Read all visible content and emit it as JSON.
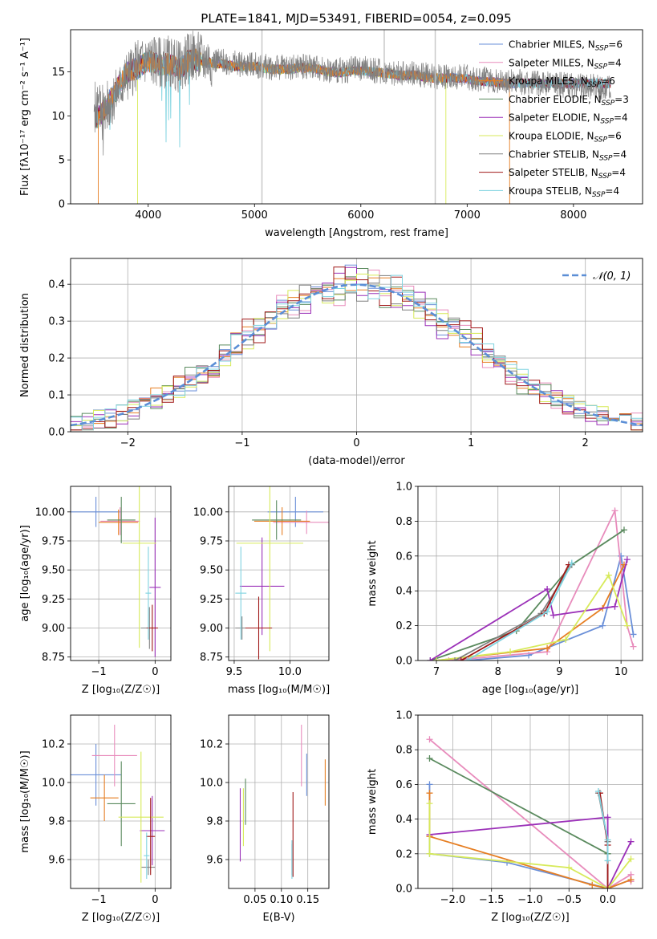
{
  "figure": {
    "title": "PLATE=1841, MJD=53491, FIBERID=0054, z=0.095"
  },
  "colors": {
    "series": [
      "#6a8fd8",
      "#e88cbc",
      "#e67e22",
      "#5a8a5e",
      "#9b30b8",
      "#d7ea5a",
      "#808080",
      "#a01818",
      "#7fd3e0"
    ],
    "normal_curve": "#5b8ed6",
    "grid": "#b0b0b0"
  },
  "chart_data": [
    {
      "id": "spectrum",
      "type": "line",
      "xlabel": "wavelength [Angstrom, rest frame]",
      "ylabel": "Flux [fλ10⁻¹⁷ erg cm⁻² s⁻¹ A⁻¹]",
      "xlim": [
        3270,
        8650
      ],
      "ylim": [
        0,
        19.8
      ],
      "xticks": [
        4000,
        5000,
        6000,
        7000,
        8000
      ],
      "yticks": [
        0,
        5,
        10,
        15
      ],
      "grid": false,
      "legend_position": "top-right",
      "legend": [
        {
          "label": "Chabrier MILES, N",
          "sub": "SSP",
          "value": "=6"
        },
        {
          "label": "Salpeter MILES, N",
          "sub": "SSP",
          "value": "=4"
        },
        {
          "label": "Kroupa MILES, N",
          "sub": "SSP",
          "value": "=6"
        },
        {
          "label": "Chabrier ELODIE, N",
          "sub": "SSP",
          "value": "=3"
        },
        {
          "label": "Salpeter ELODIE, N",
          "sub": "SSP",
          "value": "=4"
        },
        {
          "label": "Kroupa ELODIE, N",
          "sub": "SSP",
          "value": "=6"
        },
        {
          "label": "Chabrier STELIB, N",
          "sub": "SSP",
          "value": "=4"
        },
        {
          "label": "Salpeter STELIB, N",
          "sub": "SSP",
          "value": "=4"
        },
        {
          "label": "Kroupa STELIB, N",
          "sub": "SSP",
          "value": "=4"
        }
      ],
      "data_spectrum": {
        "x": [
          3500,
          3600,
          3700,
          3800,
          3900,
          4000,
          4100,
          4200,
          4300,
          4400,
          4500,
          4600,
          4700,
          4800,
          4900,
          5000,
          5100,
          5200,
          5300,
          5400,
          5500,
          5600,
          5700,
          5800,
          5900,
          6000,
          6100,
          6200,
          6300,
          6400,
          6500,
          6600,
          6700,
          6800,
          6900,
          7000,
          7100,
          7200,
          7300,
          7400,
          7500,
          7600,
          7700,
          7800,
          7900,
          8000,
          8100,
          8200,
          8300
        ],
        "y": [
          11,
          10.8,
          12.5,
          14.5,
          15.8,
          16.5,
          16,
          16.2,
          15.5,
          16.8,
          16.5,
          16.3,
          16.2,
          16,
          15.8,
          15.8,
          15.6,
          15.5,
          15.5,
          15.6,
          15.7,
          15.5,
          15.2,
          15.1,
          15.3,
          15.4,
          15.2,
          15,
          14.9,
          14.8,
          14.9,
          14.6,
          14.5,
          14.5,
          14.5,
          14.4,
          14.2,
          14.1,
          14,
          13.9,
          13.8,
          13.7,
          13.7,
          13.6,
          13.5,
          13.5,
          13.4,
          13.3,
          13.2
        ]
      },
      "model": {
        "x": [
          3450,
          3530,
          3600,
          3700,
          3800,
          3900,
          4000,
          4100,
          4200,
          4300,
          4400,
          4500,
          4600,
          4700,
          4800,
          4900,
          5000,
          5100,
          5200,
          5300,
          5400,
          5500,
          5600,
          5700,
          5800,
          5900,
          6000,
          6100,
          6200,
          6300,
          6400,
          6500,
          6600,
          6700,
          6800,
          6900,
          7000,
          7100,
          7200,
          7300,
          7400
        ],
        "y": [
          10.2,
          9.8,
          11,
          13,
          15,
          15.4,
          16.3,
          15.8,
          15.9,
          15.3,
          16.5,
          16.2,
          16,
          15.9,
          15.7,
          15.6,
          15.6,
          15.4,
          15.3,
          15.3,
          15.4,
          15.5,
          15.3,
          15,
          14.9,
          15.1,
          15.2,
          15,
          14.9,
          14.7,
          14.6,
          14.7,
          14.4,
          14.3,
          14.3,
          14.3,
          14.2,
          14,
          13.9,
          13.8,
          13.7
        ]
      },
      "model_range": {
        "Kroupa MILES": [
          3530,
          7400
        ],
        "Kroupa ELODIE": [
          3900,
          6800
        ]
      }
    },
    {
      "id": "residuals",
      "type": "line",
      "xlabel": "(data-model)/error",
      "ylabel": "Normed distribution",
      "xlim": [
        -2.5,
        2.5
      ],
      "ylim": [
        0,
        0.47
      ],
      "xticks": [
        -2,
        -1,
        0,
        1,
        2
      ],
      "yticks": [
        0.0,
        0.1,
        0.2,
        0.3,
        0.4
      ],
      "grid": true,
      "legend_position": "top-right",
      "legend_label": "𝒩(0, 1)",
      "bin_width": 0.1,
      "normal": {
        "mean": 0,
        "sigma": 1
      }
    },
    {
      "id": "age_vs_Z",
      "type": "scatter",
      "xlabel": "Z [log₁₀(Z/Z☉)]",
      "ylabel": "age  [log₁₀(age/yr)]",
      "xlim": [
        -1.5,
        0.28
      ],
      "ylim": [
        8.72,
        10.22
      ],
      "xticks": [
        -1,
        0
      ],
      "yticks": [
        8.75,
        9.0,
        9.25,
        9.5,
        9.75,
        10.0
      ],
      "grid": true,
      "points": [
        {
          "x": -1.05,
          "xerr": 0.45,
          "y": 10.0,
          "yerr": 0.13
        },
        {
          "x": -0.62,
          "xerr": 0.35,
          "y": 9.92,
          "yerr": 0.12
        },
        {
          "x": -0.65,
          "xerr": 0.35,
          "y": 9.91,
          "yerr": 0.11
        },
        {
          "x": -0.6,
          "xerr": 0.25,
          "y": 9.93,
          "yerr": 0.2
        },
        {
          "x": 0.0,
          "xerr": 0.1,
          "y": 9.35,
          "yerr": 0.6
        },
        {
          "x": -0.28,
          "xerr": 0.3,
          "y": 9.73,
          "yerr": 0.9
        },
        {
          "x": -0.1,
          "xerr": 0.15,
          "y": 9.0,
          "yerr": 0.18
        },
        {
          "x": -0.05,
          "xerr": 0.1,
          "y": 9.0,
          "yerr": 0.2
        },
        {
          "x": -0.12,
          "xerr": 0.05,
          "y": 9.3,
          "yerr": 0.4
        }
      ]
    },
    {
      "id": "age_vs_mass",
      "type": "scatter",
      "xlabel": "mass [log₁₀(M/M☉)]",
      "ylabel": "",
      "xlim": [
        9.45,
        10.35
      ],
      "ylim": [
        8.72,
        10.22
      ],
      "xticks": [
        9.5,
        10.0
      ],
      "yticks": [
        8.75,
        9.0,
        9.25,
        9.5,
        9.75,
        10.0
      ],
      "grid": true,
      "points": [
        {
          "x": 10.05,
          "xerr": 0.25,
          "y": 10.0,
          "yerr": 0.13
        },
        {
          "x": 10.15,
          "xerr": 0.3,
          "y": 9.91,
          "yerr": 0.1
        },
        {
          "x": 9.93,
          "xerr": 0.25,
          "y": 9.92,
          "yerr": 0.12
        },
        {
          "x": 9.88,
          "xerr": 0.22,
          "y": 9.93,
          "yerr": 0.17
        },
        {
          "x": 9.75,
          "xerr": 0.2,
          "y": 9.36,
          "yerr": 0.42
        },
        {
          "x": 9.82,
          "xerr": 0.3,
          "y": 9.73,
          "yerr": 0.93
        },
        {
          "x": 9.57,
          "xerr": 0.06,
          "y": 9.0,
          "yerr": 0.1
        },
        {
          "x": 9.72,
          "xerr": 0.12,
          "y": 9.0,
          "yerr": 0.27
        },
        {
          "x": 9.56,
          "xerr": 0.05,
          "y": 9.3,
          "yerr": 0.4
        }
      ]
    },
    {
      "id": "weight_vs_age",
      "type": "line",
      "xlabel": "age  [log₁₀(age/yr)]",
      "ylabel": "mass weight",
      "xlim": [
        6.7,
        10.35
      ],
      "ylim": [
        0,
        1.0
      ],
      "xticks": [
        7,
        8,
        9,
        10
      ],
      "yticks": [
        0.0,
        0.2,
        0.4,
        0.6,
        0.8,
        1.0
      ],
      "grid": true,
      "series": [
        {
          "x": [
            7.5,
            8.5,
            9.7,
            10.0,
            10.2
          ],
          "y": [
            0.0,
            0.03,
            0.2,
            0.6,
            0.15
          ]
        },
        {
          "x": [
            7.2,
            8.8,
            9.9,
            10.1,
            10.2
          ],
          "y": [
            0.0,
            0.05,
            0.86,
            0.2,
            0.08
          ]
        },
        {
          "x": [
            7.0,
            8.8,
            9.7,
            10.05
          ],
          "y": [
            0.0,
            0.07,
            0.3,
            0.55
          ]
        },
        {
          "x": [
            6.9,
            8.3,
            9.2,
            10.05
          ],
          "y": [
            0.0,
            0.17,
            0.55,
            0.75
          ]
        },
        {
          "x": [
            6.9,
            8.8,
            8.9,
            9.9,
            10.1
          ],
          "y": [
            0.0,
            0.41,
            0.26,
            0.31,
            0.58
          ]
        },
        {
          "x": [
            7.0,
            8.2,
            9.1,
            9.8,
            10.1
          ],
          "y": [
            0.0,
            0.05,
            0.12,
            0.49,
            0.2
          ]
        },
        {
          "x": [
            7.3,
            8.7,
            9.2
          ],
          "y": [
            0.0,
            0.27,
            0.55
          ]
        },
        {
          "x": [
            7.4,
            8.75,
            9.15
          ],
          "y": [
            0.0,
            0.27,
            0.55
          ]
        },
        {
          "x": [
            7.5,
            8.8,
            9.2
          ],
          "y": [
            0.0,
            0.28,
            0.56
          ]
        }
      ]
    },
    {
      "id": "mass_vs_Z",
      "type": "scatter",
      "xlabel": "Z [log₁₀(Z/Z☉)]",
      "ylabel": "mass [log₁₀(M/M☉)]",
      "xlim": [
        -1.5,
        0.28
      ],
      "ylim": [
        9.45,
        10.35
      ],
      "xticks": [
        -1,
        0
      ],
      "yticks": [
        9.6,
        9.8,
        10.0,
        10.2
      ],
      "grid": true,
      "points": [
        {
          "x": -1.05,
          "xerr": 0.45,
          "y": 10.04,
          "yerr": 0.16
        },
        {
          "x": -0.72,
          "xerr": 0.4,
          "y": 10.14,
          "yerr": 0.16
        },
        {
          "x": -0.9,
          "xerr": 0.25,
          "y": 9.92,
          "yerr": 0.12
        },
        {
          "x": -0.6,
          "xerr": 0.25,
          "y": 9.89,
          "yerr": 0.22
        },
        {
          "x": -0.05,
          "xerr": 0.22,
          "y": 9.75,
          "yerr": 0.18
        },
        {
          "x": -0.25,
          "xerr": 0.4,
          "y": 9.82,
          "yerr": 0.34
        },
        {
          "x": -0.12,
          "xerr": 0.12,
          "y": 9.56,
          "yerr": 0.04
        },
        {
          "x": -0.08,
          "xerr": 0.08,
          "y": 9.72,
          "yerr": 0.2
        },
        {
          "x": -0.15,
          "xerr": 0.05,
          "y": 9.62,
          "yerr": 0.12
        }
      ]
    },
    {
      "id": "mass_vs_EBV",
      "type": "scatter",
      "xlabel": "E(B-V)",
      "ylabel": "",
      "xlim": [
        0.0,
        0.19
      ],
      "ylim": [
        9.45,
        10.35
      ],
      "xticks": [
        0.05,
        0.1,
        0.15
      ],
      "yticks": [
        9.6,
        9.8,
        10.0,
        10.2
      ],
      "grid": true,
      "points": [
        {
          "x": 0.148,
          "y": 10.04,
          "yerr": 0.11
        },
        {
          "x": 0.138,
          "y": 10.14,
          "yerr": 0.16
        },
        {
          "x": 0.183,
          "y": 10.0,
          "yerr": 0.12
        },
        {
          "x": 0.032,
          "y": 9.9,
          "yerr": 0.12
        },
        {
          "x": 0.022,
          "y": 9.78,
          "yerr": 0.19
        },
        {
          "x": 0.028,
          "y": 9.82,
          "yerr": 0.15
        },
        {
          "x": 0.12,
          "y": 9.6,
          "yerr": 0.08
        },
        {
          "x": 0.122,
          "y": 9.73,
          "yerr": 0.22
        },
        {
          "x": 0.12,
          "y": 9.6,
          "yerr": 0.1
        }
      ]
    },
    {
      "id": "weight_vs_Z",
      "type": "line",
      "xlabel": "Z [log₁₀(Z/Z☉)]",
      "ylabel": "mass weight",
      "xlim": [
        -2.45,
        0.45
      ],
      "ylim": [
        0,
        1.0
      ],
      "xticks": [
        -2.0,
        -1.5,
        -1.0,
        -0.5,
        0.0
      ],
      "yticks": [
        0.0,
        0.2,
        0.4,
        0.6,
        0.8,
        1.0
      ],
      "grid": true,
      "series": [
        {
          "x": [
            -2.3,
            -2.3,
            -1.3,
            0.0,
            0.3
          ],
          "y": [
            0.6,
            0.2,
            0.15,
            0.0,
            0.05
          ]
        },
        {
          "x": [
            -2.3,
            0.0,
            0.3,
            0.3
          ],
          "y": [
            0.86,
            0.0,
            0.08,
            0.04
          ]
        },
        {
          "x": [
            -2.3,
            -2.3,
            -0.2,
            0.0,
            0.3
          ],
          "y": [
            0.55,
            0.3,
            0.02,
            0.0,
            0.05
          ]
        },
        {
          "x": [
            -2.3,
            0.0,
            0.0
          ],
          "y": [
            0.75,
            0.2,
            0.2
          ]
        },
        {
          "x": [
            -2.3,
            0.0,
            0.0,
            0.3
          ],
          "y": [
            0.31,
            0.41,
            0.0,
            0.27
          ]
        },
        {
          "x": [
            -2.3,
            -2.3,
            -0.5,
            0.0,
            0.3
          ],
          "y": [
            0.49,
            0.2,
            0.12,
            0.0,
            0.17
          ]
        },
        {
          "x": [
            -0.12,
            0.0,
            0.0
          ],
          "y": [
            0.55,
            0.27,
            0.0
          ]
        },
        {
          "x": [
            -0.1,
            0.0,
            0.0
          ],
          "y": [
            0.55,
            0.25,
            0.0
          ]
        },
        {
          "x": [
            -0.12,
            0.0,
            0.0
          ],
          "y": [
            0.56,
            0.28,
            0.16
          ]
        }
      ]
    }
  ]
}
